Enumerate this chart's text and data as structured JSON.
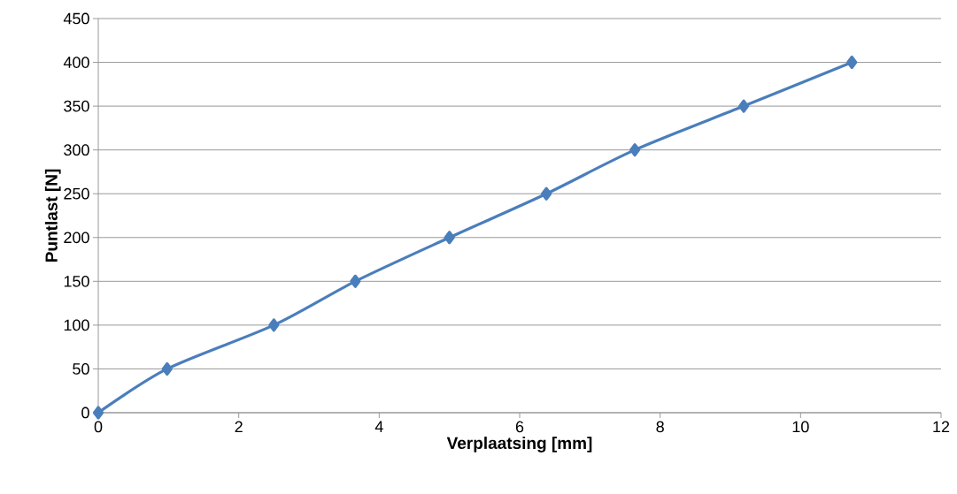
{
  "chart_data": {
    "type": "line",
    "xlabel": "Verplaatsing [mm]",
    "ylabel": "Puntlast [N]",
    "x": [
      0,
      0.98,
      2.5,
      3.66,
      5.0,
      6.38,
      7.64,
      9.19,
      10.73
    ],
    "series": [
      {
        "color": "#4a7ebb",
        "values": [
          0,
          50,
          100,
          150,
          200,
          250,
          300,
          350,
          400
        ]
      }
    ],
    "xlim": [
      0,
      12
    ],
    "xticks": [
      0,
      2,
      4,
      6,
      8,
      10,
      12
    ],
    "ylim": [
      0,
      450
    ],
    "yticks": [
      0,
      50,
      100,
      150,
      200,
      250,
      300,
      350,
      400,
      450
    ],
    "grid": "y",
    "marker": "diamond",
    "line_style": "solid"
  }
}
